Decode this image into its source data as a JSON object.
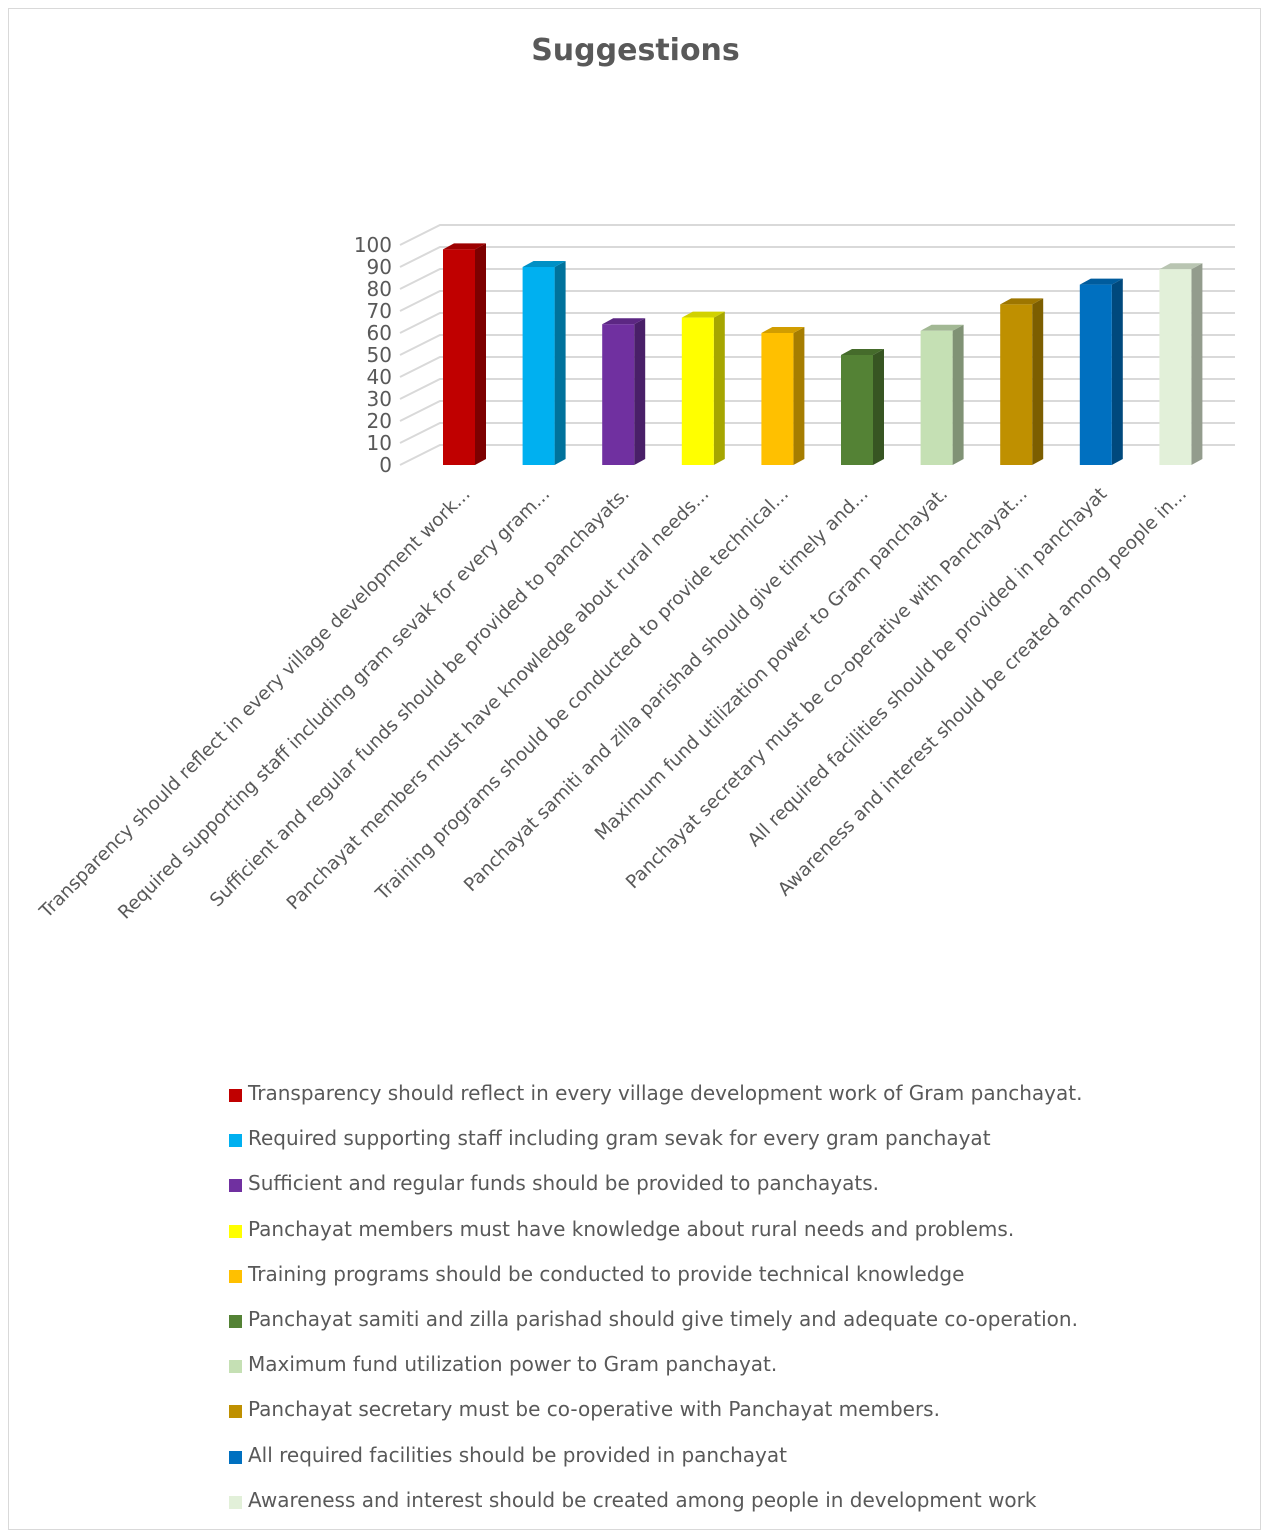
{
  "chart_data": {
    "type": "bar",
    "title": "Suggestions",
    "xlabel": "",
    "ylabel": "",
    "ylim": [
      0,
      100
    ],
    "yticks": [
      "0",
      "10",
      "20",
      "30",
      "40",
      "50",
      "60",
      "70",
      "80",
      "90",
      "100"
    ],
    "grid": true,
    "legend": "bottom",
    "three_d": true,
    "categories": [
      "Transparency should reflect in every village development work...",
      "Required supporting staff including gram sevak for every gram...",
      "Sufficient and regular funds should be provided to panchayats.",
      "Panchayat members must have knowledge about rural needs...",
      "Training programs should be conducted to provide technical...",
      "Panchayat samiti and zilla parishad should give timely and...",
      "Maximum fund utilization power to Gram panchayat.",
      "Panchayat secretary must be co-operative with Panchayat...",
      "All required facilities should be provided in panchayat",
      "Awareness and interest should be created among people in..."
    ],
    "values": [
      98,
      90,
      64,
      67,
      60,
      50,
      61,
      73,
      82,
      89
    ],
    "legend_entries": [
      "Transparency should reflect in every village development work of Gram panchayat.",
      "Required supporting staff including gram sevak for every gram panchayat",
      "Sufficient and regular funds should be provided to panchayats.",
      "Panchayat members must have knowledge about rural needs and problems.",
      "Training programs should be conducted to provide technical knowledge",
      "Panchayat samiti and zilla parishad should give timely and adequate co-operation.",
      "Maximum fund utilization power to Gram panchayat.",
      "Panchayat secretary must be co-operative with Panchayat members.",
      "All required facilities should be provided in panchayat",
      "Awareness and interest should be created among people in development work"
    ],
    "colors": [
      "#c00000",
      "#00b0f0",
      "#7030a0",
      "#ffff00",
      "#ffc000",
      "#548235",
      "#c5e0b4",
      "#bf9000",
      "#0070c0",
      "#e2f0d9"
    ]
  }
}
